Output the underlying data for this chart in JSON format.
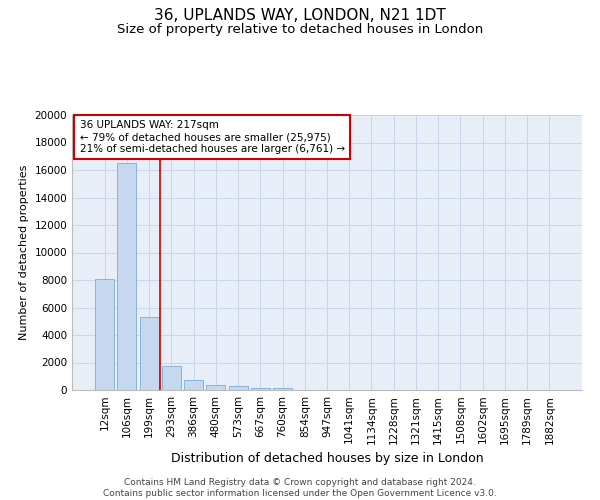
{
  "title": "36, UPLANDS WAY, LONDON, N21 1DT",
  "subtitle": "Size of property relative to detached houses in London",
  "xlabel": "Distribution of detached houses by size in London",
  "ylabel": "Number of detached properties",
  "footer_line1": "Contains HM Land Registry data © Crown copyright and database right 2024.",
  "footer_line2": "Contains public sector information licensed under the Open Government Licence v3.0.",
  "bar_labels": [
    "12sqm",
    "106sqm",
    "199sqm",
    "293sqm",
    "386sqm",
    "480sqm",
    "573sqm",
    "667sqm",
    "760sqm",
    "854sqm",
    "947sqm",
    "1041sqm",
    "1134sqm",
    "1228sqm",
    "1321sqm",
    "1415sqm",
    "1508sqm",
    "1602sqm",
    "1695sqm",
    "1789sqm",
    "1882sqm"
  ],
  "bar_values": [
    8100,
    16500,
    5300,
    1750,
    750,
    330,
    260,
    180,
    150,
    0,
    0,
    0,
    0,
    0,
    0,
    0,
    0,
    0,
    0,
    0,
    0
  ],
  "bar_color": "#c5d8f0",
  "bar_edge_color": "#7aadd4",
  "annotation_title": "36 UPLANDS WAY: 217sqm",
  "annotation_line1": "← 79% of detached houses are smaller (25,975)",
  "annotation_line2": "21% of semi-detached houses are larger (6,761) →",
  "vline_x": 2.5,
  "ylim": [
    0,
    20000
  ],
  "yticks": [
    0,
    2000,
    4000,
    6000,
    8000,
    10000,
    12000,
    14000,
    16000,
    18000,
    20000
  ],
  "grid_color": "#c8d4e8",
  "bg_color": "#e8eef8",
  "title_fontsize": 11,
  "subtitle_fontsize": 9.5,
  "tick_fontsize": 7.5,
  "ylabel_fontsize": 8,
  "xlabel_fontsize": 9,
  "footer_fontsize": 6.5,
  "annotation_box_color": "#cc0000",
  "vline_color": "#cc0000"
}
